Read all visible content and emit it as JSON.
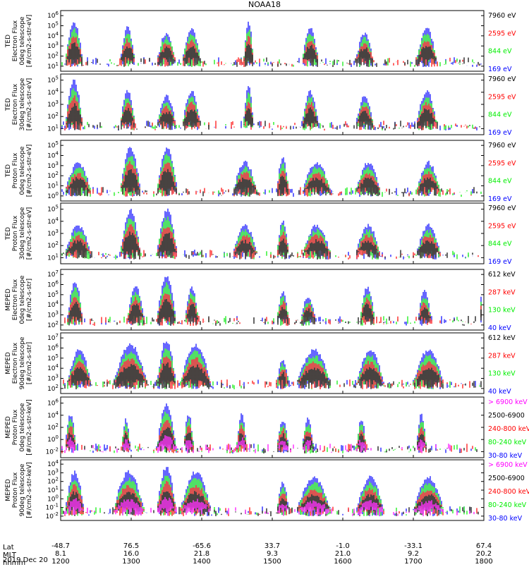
{
  "title": "NOAA18",
  "date": "2019 Dec 20",
  "row_labels": [
    "Lat",
    "MLT",
    "hhmm"
  ],
  "colors": {
    "black": "#000000",
    "red": "#ff0000",
    "green": "#00ee00",
    "blue": "#0000ff",
    "magenta": "#ff00ff"
  },
  "chart_data": {
    "type": "line",
    "x_axis": {
      "ticks": [
        {
          "hhmm": "1200",
          "lat": "-48.7",
          "mlt": "8.1"
        },
        {
          "hhmm": "1300",
          "lat": "76.5",
          "mlt": "16.0"
        },
        {
          "hhmm": "1400",
          "lat": "-65.6",
          "mlt": "21.8"
        },
        {
          "hhmm": "1500",
          "lat": "33.7",
          "mlt": "9.3"
        },
        {
          "hhmm": "1600",
          "lat": "-1.0",
          "mlt": "21.0"
        },
        {
          "hhmm": "1700",
          "lat": "-33.1",
          "mlt": "9.2"
        },
        {
          "hhmm": "1800",
          "lat": "67.4",
          "mlt": "20.2"
        }
      ]
    },
    "panels": [
      {
        "ylabel": [
          "TED",
          "Electron Flux",
          "0deg telescope",
          "[#/cm2-s-str-eV]"
        ],
        "yexp": [
          1,
          2,
          3,
          4,
          5,
          6
        ],
        "legend": [
          {
            "text": "7960 eV",
            "color": "#000000"
          },
          {
            "text": "2595 eV",
            "color": "#ff0000"
          },
          {
            "text": "844 eV",
            "color": "#00ee00"
          },
          {
            "text": "169 eV",
            "color": "#0000ff"
          }
        ]
      },
      {
        "ylabel": [
          "TED",
          "Electron Flux",
          "30deg telescope",
          "[#/cm2-s-str-eV]"
        ],
        "yexp": [
          1,
          2,
          3,
          4,
          5
        ],
        "legend": [
          {
            "text": "7960 eV",
            "color": "#000000"
          },
          {
            "text": "2595 eV",
            "color": "#ff0000"
          },
          {
            "text": "844 eV",
            "color": "#00ee00"
          },
          {
            "text": "169 eV",
            "color": "#0000ff"
          }
        ]
      },
      {
        "ylabel": [
          "TED",
          "Proton Flux",
          "0deg telescope",
          "[#/cm2-s-str-eV]"
        ],
        "yexp": [
          0,
          1,
          2,
          3,
          4,
          5
        ],
        "legend": [
          {
            "text": "7960 eV",
            "color": "#000000"
          },
          {
            "text": "2595 eV",
            "color": "#ff0000"
          },
          {
            "text": "844 eV",
            "color": "#00ee00"
          },
          {
            "text": "169 eV",
            "color": "#0000ff"
          }
        ]
      },
      {
        "ylabel": [
          "TED",
          "Proton Flux",
          "30deg telescope",
          "[#/cm2-s-str-eV]"
        ],
        "yexp": [
          1,
          2,
          3,
          4,
          5
        ],
        "legend": [
          {
            "text": "7960 eV",
            "color": "#000000"
          },
          {
            "text": "2595 eV",
            "color": "#ff0000"
          },
          {
            "text": "844 eV",
            "color": "#00ee00"
          },
          {
            "text": "169 eV",
            "color": "#0000ff"
          }
        ]
      },
      {
        "ylabel": [
          "MEPED",
          "Electron Flux",
          "0deg telescope",
          "[#/cm2-s-str]"
        ],
        "yexp": [
          2,
          3,
          4,
          5,
          6,
          7
        ],
        "legend": [
          {
            "text": "612 keV",
            "color": "#000000"
          },
          {
            "text": "287 keV",
            "color": "#ff0000"
          },
          {
            "text": "130 keV",
            "color": "#00ee00"
          },
          {
            "text": "40 keV",
            "color": "#0000ff"
          }
        ]
      },
      {
        "ylabel": [
          "MEPED",
          "Electron Flux",
          "90deg telescope",
          "[#/cm2-s-str]"
        ],
        "yexp": [
          2,
          3,
          4,
          5,
          6,
          7
        ],
        "legend": [
          {
            "text": "612 keV",
            "color": "#000000"
          },
          {
            "text": "287 keV",
            "color": "#ff0000"
          },
          {
            "text": "130 keV",
            "color": "#00ee00"
          },
          {
            "text": "40 keV",
            "color": "#0000ff"
          }
        ]
      },
      {
        "ylabel": [
          "MEPED",
          "Proton Flux",
          "0deg telescope",
          "[#/cm2-s-str-keV]"
        ],
        "yexp": [
          -2,
          0,
          2,
          4,
          6
        ],
        "legend": [
          {
            "text": "> 6900 keV",
            "color": "#ff00ff"
          },
          {
            "text": "2500-6900",
            "color": "#000000"
          },
          {
            "text": "240-800 keV",
            "color": "#ff0000"
          },
          {
            "text": "80-240 keV",
            "color": "#00ee00"
          },
          {
            "text": "30-80 keV",
            "color": "#0000ff"
          }
        ]
      },
      {
        "ylabel": [
          "MEPED",
          "Proton Flux",
          "90deg telescope",
          "[#/cm2-s-str-keV]"
        ],
        "yexp": [
          -2,
          -1,
          0,
          1,
          2,
          3,
          4
        ],
        "legend": [
          {
            "text": "> 6900 keV",
            "color": "#ff00ff"
          },
          {
            "text": "2500-6900",
            "color": "#000000"
          },
          {
            "text": "240-800 keV",
            "color": "#ff0000"
          },
          {
            "text": "80-240 keV",
            "color": "#00ee00"
          },
          {
            "text": "30-80 keV",
            "color": "#0000ff"
          }
        ]
      }
    ]
  }
}
